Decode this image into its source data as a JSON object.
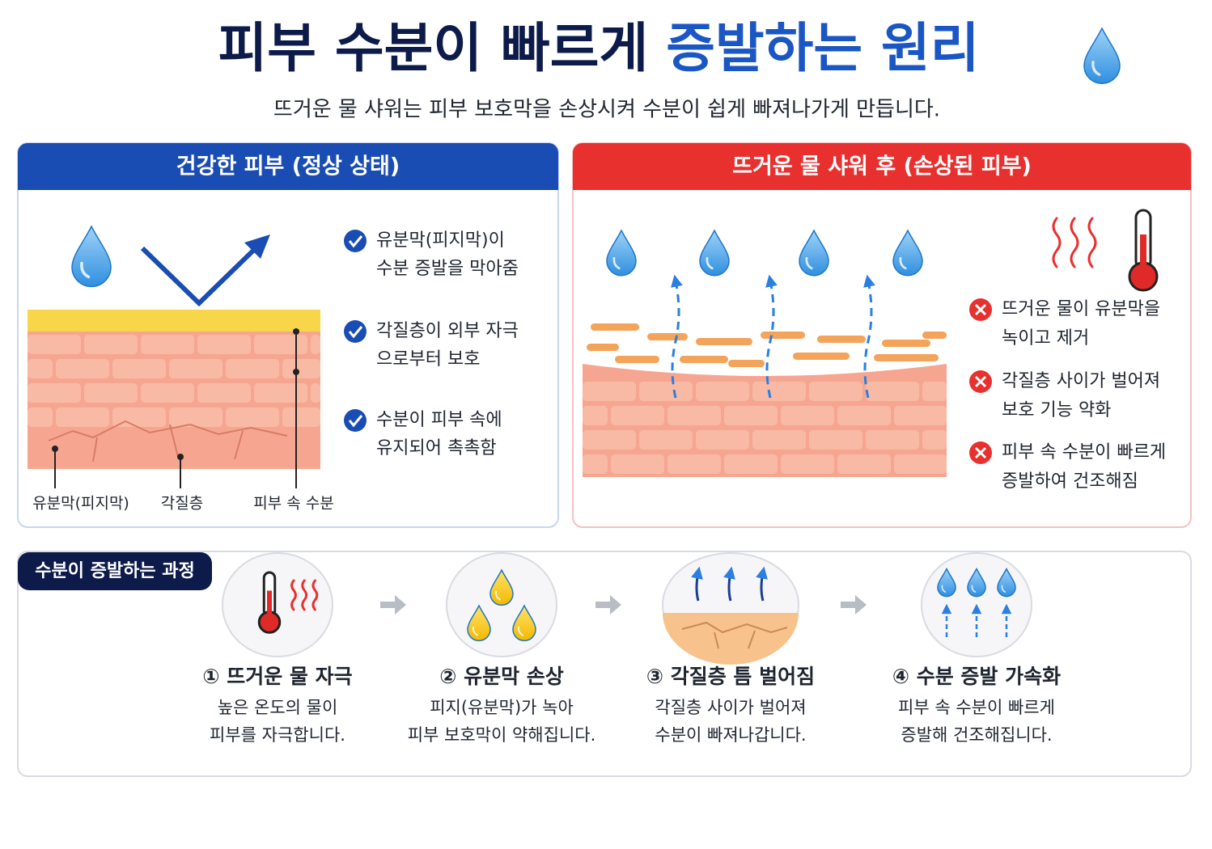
{
  "title": {
    "main": "피부 수분이 빠르게",
    "highlight": "증발하는 원리"
  },
  "subtitle": "뜨거운 물 샤워는 피부 보호막을 손상시켜 수분이 쉽게 빠져나가게 만듭니다.",
  "left_panel": {
    "header": "건강한 피부 (정상 상태)",
    "checks": [
      {
        "lines": [
          "유분막(피지막)이",
          "수분 증발을 막아줌"
        ]
      },
      {
        "lines": [
          "각질층이 외부 자극",
          "으로부터 보호"
        ]
      },
      {
        "lines": [
          "수분이 피부 속에",
          "유지되어 촉촉함"
        ]
      }
    ],
    "labels": [
      "유분막(피지막)",
      "각질층",
      "피부 속 수분"
    ]
  },
  "right_panel": {
    "header": "뜨거운 물 샤워 후 (손상된 피부)",
    "items": [
      {
        "lines": [
          "뜨거운 물이 유분막을",
          "녹이고 제거"
        ]
      },
      {
        "lines": [
          "각질층 사이가 벌어져",
          "보호 기능 약화"
        ]
      },
      {
        "lines": [
          "피부 속 수분이 빠르게",
          "증발하여 건조해짐"
        ]
      }
    ]
  },
  "process": {
    "badge": "수분이 증발하는 과정",
    "steps": [
      {
        "title": "① 뜨거운 물 자극",
        "lines": [
          "높은 온도의 물이",
          "피부를 자극합니다."
        ]
      },
      {
        "title": "② 유분막 손상",
        "lines": [
          "피지(유분막)가 녹아",
          "피부 보호막이 약해집니다."
        ]
      },
      {
        "title": "③ 각질층 틈 벌어짐",
        "lines": [
          "각질층 사이가 벌어져",
          "수분이 빠져나갑니다."
        ]
      },
      {
        "title": "④ 수분 증발 가속화",
        "lines": [
          "피부 속 수분이 빠르게",
          "증발해 건조해집니다."
        ]
      }
    ]
  }
}
